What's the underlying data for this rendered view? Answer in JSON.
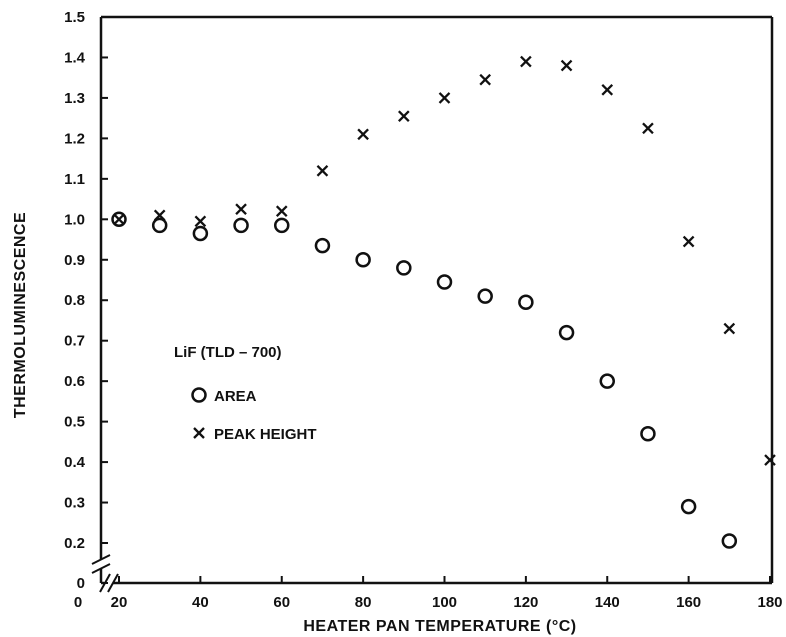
{
  "chart_data": {
    "type": "scatter",
    "xlabel": "HEATER PAN TEMPERATURE (°C)",
    "ylabel": "THERMOLUMINESCENCE",
    "xlim": [
      0,
      180
    ],
    "ylim": [
      0,
      1.5
    ],
    "axis_break": {
      "x": true,
      "y": true,
      "y_jump": [
        0,
        0.15
      ],
      "x_jump": [
        0,
        15
      ]
    },
    "x_ticks": [
      {
        "value": 0,
        "label": "0"
      },
      {
        "value": 20,
        "label": "20"
      },
      {
        "value": 40,
        "label": "40"
      },
      {
        "value": 60,
        "label": "60"
      },
      {
        "value": 80,
        "label": "80"
      },
      {
        "value": 100,
        "label": "100"
      },
      {
        "value": 120,
        "label": "120"
      },
      {
        "value": 140,
        "label": "140"
      },
      {
        "value": 160,
        "label": "160"
      },
      {
        "value": 180,
        "label": "180"
      }
    ],
    "y_ticks": [
      {
        "value": 0,
        "label": "0"
      },
      {
        "value": 0.2,
        "label": "0.2"
      },
      {
        "value": 0.3,
        "label": "0.3"
      },
      {
        "value": 0.4,
        "label": "0.4"
      },
      {
        "value": 0.5,
        "label": "0.5"
      },
      {
        "value": 0.6,
        "label": "0.6"
      },
      {
        "value": 0.7,
        "label": "0.7"
      },
      {
        "value": 0.8,
        "label": "0.8"
      },
      {
        "value": 0.9,
        "label": "0.9"
      },
      {
        "value": 1.0,
        "label": "1.0"
      },
      {
        "value": 1.1,
        "label": "1.1"
      },
      {
        "value": 1.2,
        "label": "1.2"
      },
      {
        "value": 1.3,
        "label": "1.3"
      },
      {
        "value": 1.4,
        "label": "1.4"
      },
      {
        "value": 1.5,
        "label": "1.5"
      }
    ],
    "legend": {
      "title": "LiF (TLD – 700)",
      "placement": "lower-left"
    },
    "series": [
      {
        "name": "AREA",
        "marker": "circle",
        "x": [
          20,
          30,
          40,
          50,
          60,
          70,
          80,
          90,
          100,
          110,
          120,
          130,
          140,
          150,
          160,
          170
        ],
        "y": [
          1.0,
          0.985,
          0.965,
          0.985,
          0.985,
          0.935,
          0.9,
          0.88,
          0.845,
          0.81,
          0.795,
          0.72,
          0.6,
          0.47,
          0.29,
          0.205
        ]
      },
      {
        "name": "PEAK HEIGHT",
        "marker": "cross",
        "x": [
          20,
          30,
          40,
          50,
          60,
          70,
          80,
          90,
          100,
          110,
          120,
          130,
          140,
          150,
          160,
          170,
          180
        ],
        "y": [
          1.0,
          1.01,
          0.995,
          1.025,
          1.02,
          1.12,
          1.21,
          1.255,
          1.3,
          1.345,
          1.39,
          1.38,
          1.32,
          1.225,
          0.945,
          0.73,
          0.405
        ]
      }
    ]
  }
}
